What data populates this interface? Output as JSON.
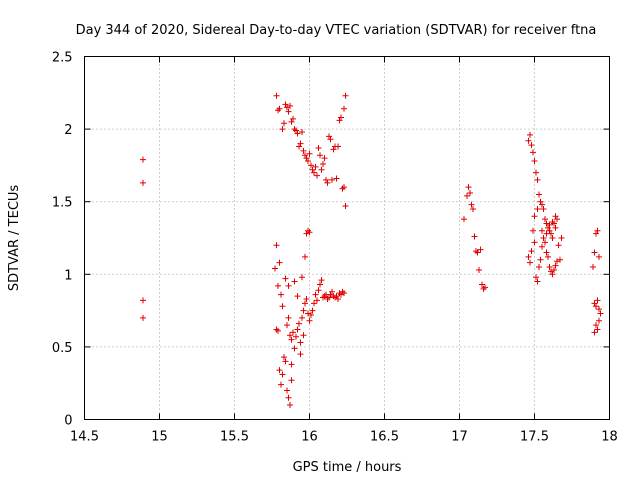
{
  "chart_data": {
    "type": "scatter",
    "title": "Day 344 of 2020, Sidereal Day-to-day VTEC variation (SDTVAR) for receiver ftna",
    "xlabel": "GPS time / hours",
    "ylabel": "SDTVAR / TECUs",
    "xlim": [
      14.5,
      18
    ],
    "ylim": [
      0,
      2.5
    ],
    "xticks": [
      14.5,
      15,
      15.5,
      16,
      16.5,
      17,
      17.5,
      18
    ],
    "yticks": [
      0,
      0.5,
      1,
      1.5,
      2,
      2.5
    ],
    "xtick_labels": [
      "14.5",
      "15",
      "15.5",
      "16",
      "16.5",
      "17",
      "17.5",
      "18"
    ],
    "ytick_labels": [
      "0",
      "0.5",
      "1",
      "1.5",
      "2",
      "2.5"
    ],
    "grid": true,
    "marker": "plus",
    "series": [
      {
        "name": "SDTVAR",
        "color": "#e00000",
        "points": [
          [
            14.89,
            1.79
          ],
          [
            14.89,
            1.63
          ],
          [
            14.89,
            0.82
          ],
          [
            14.89,
            0.7
          ],
          [
            15.78,
            2.23
          ],
          [
            15.79,
            2.13
          ],
          [
            15.8,
            2.14
          ],
          [
            15.82,
            2.0
          ],
          [
            15.83,
            2.04
          ],
          [
            15.84,
            2.17
          ],
          [
            15.85,
            2.15
          ],
          [
            15.86,
            2.12
          ],
          [
            15.87,
            2.16
          ],
          [
            15.88,
            2.05
          ],
          [
            15.89,
            2.07
          ],
          [
            15.9,
            2.0
          ],
          [
            15.91,
            1.99
          ],
          [
            15.92,
            1.97
          ],
          [
            15.93,
            1.88
          ],
          [
            15.94,
            1.9
          ],
          [
            15.95,
            1.98
          ],
          [
            15.96,
            1.85
          ],
          [
            15.97,
            1.82
          ],
          [
            15.98,
            1.8
          ],
          [
            15.99,
            1.78
          ],
          [
            16.0,
            1.83
          ],
          [
            16.01,
            1.75
          ],
          [
            16.02,
            1.72
          ],
          [
            16.03,
            1.7
          ],
          [
            16.04,
            1.74
          ],
          [
            16.05,
            1.68
          ],
          [
            16.06,
            1.87
          ],
          [
            16.07,
            1.82
          ],
          [
            16.08,
            1.72
          ],
          [
            16.09,
            1.76
          ],
          [
            16.1,
            1.8
          ],
          [
            16.11,
            1.65
          ],
          [
            16.12,
            1.63
          ],
          [
            16.13,
            1.95
          ],
          [
            16.14,
            1.93
          ],
          [
            16.15,
            1.65
          ],
          [
            16.16,
            1.86
          ],
          [
            16.17,
            1.88
          ],
          [
            16.18,
            1.66
          ],
          [
            16.19,
            1.88
          ],
          [
            16.2,
            2.06
          ],
          [
            16.21,
            2.08
          ],
          [
            16.22,
            1.59
          ],
          [
            16.23,
            2.14
          ],
          [
            16.24,
            2.23
          ],
          [
            16.23,
            1.6
          ],
          [
            16.24,
            1.47
          ],
          [
            15.77,
            1.04
          ],
          [
            15.78,
            1.2
          ],
          [
            15.79,
            0.92
          ],
          [
            15.8,
            1.08
          ],
          [
            15.78,
            0.62
          ],
          [
            15.79,
            0.61
          ],
          [
            15.81,
            0.86
          ],
          [
            15.82,
            0.78
          ],
          [
            15.8,
            0.34
          ],
          [
            15.81,
            0.24
          ],
          [
            15.82,
            0.31
          ],
          [
            15.83,
            0.43
          ],
          [
            15.84,
            0.4
          ],
          [
            15.85,
            0.2
          ],
          [
            15.86,
            0.15
          ],
          [
            15.87,
            0.1
          ],
          [
            15.85,
            0.65
          ],
          [
            15.86,
            0.7
          ],
          [
            15.87,
            0.58
          ],
          [
            15.88,
            0.55
          ],
          [
            15.89,
            0.6
          ],
          [
            15.9,
            0.49
          ],
          [
            15.91,
            0.57
          ],
          [
            15.92,
            0.62
          ],
          [
            15.93,
            0.66
          ],
          [
            15.94,
            0.53
          ],
          [
            15.95,
            0.7
          ],
          [
            15.96,
            0.75
          ],
          [
            15.97,
            0.8
          ],
          [
            15.98,
            0.83
          ],
          [
            15.99,
            0.73
          ],
          [
            16.0,
            0.68
          ],
          [
            16.01,
            0.72
          ],
          [
            16.02,
            0.75
          ],
          [
            16.03,
            0.8
          ],
          [
            16.04,
            0.86
          ],
          [
            16.05,
            0.82
          ],
          [
            16.06,
            0.89
          ],
          [
            16.07,
            0.93
          ],
          [
            16.08,
            0.96
          ],
          [
            16.09,
            0.84
          ],
          [
            16.1,
            0.85
          ],
          [
            16.11,
            0.86
          ],
          [
            16.12,
            0.83
          ],
          [
            16.13,
            0.84
          ],
          [
            16.14,
            0.86
          ],
          [
            16.15,
            0.88
          ],
          [
            16.16,
            0.85
          ],
          [
            16.17,
            0.84
          ],
          [
            16.18,
            0.85
          ],
          [
            16.19,
            0.83
          ],
          [
            16.2,
            0.87
          ],
          [
            16.21,
            0.86
          ],
          [
            16.22,
            0.88
          ],
          [
            16.23,
            0.87
          ],
          [
            15.88,
            0.38
          ],
          [
            15.9,
            0.95
          ],
          [
            15.92,
            0.85
          ],
          [
            15.95,
            0.98
          ],
          [
            15.97,
            1.12
          ],
          [
            15.98,
            1.28
          ],
          [
            15.99,
            1.3
          ],
          [
            16.0,
            1.29
          ],
          [
            15.96,
            0.58
          ],
          [
            15.94,
            0.45
          ],
          [
            15.84,
            0.97
          ],
          [
            15.86,
            0.92
          ],
          [
            15.88,
            0.27
          ],
          [
            17.03,
            1.38
          ],
          [
            17.05,
            1.54
          ],
          [
            17.06,
            1.6
          ],
          [
            17.07,
            1.56
          ],
          [
            17.08,
            1.48
          ],
          [
            17.09,
            1.45
          ],
          [
            17.1,
            1.26
          ],
          [
            17.11,
            1.16
          ],
          [
            17.12,
            1.15
          ],
          [
            17.13,
            1.03
          ],
          [
            17.14,
            1.17
          ],
          [
            17.15,
            0.93
          ],
          [
            17.16,
            0.9
          ],
          [
            17.17,
            0.91
          ],
          [
            17.46,
            1.92
          ],
          [
            17.47,
            1.96
          ],
          [
            17.48,
            1.89
          ],
          [
            17.49,
            1.84
          ],
          [
            17.5,
            1.78
          ],
          [
            17.51,
            1.7
          ],
          [
            17.52,
            1.65
          ],
          [
            17.53,
            1.55
          ],
          [
            17.54,
            1.5
          ],
          [
            17.55,
            1.48
          ],
          [
            17.56,
            1.45
          ],
          [
            17.57,
            1.38
          ],
          [
            17.58,
            1.35
          ],
          [
            17.59,
            1.32
          ],
          [
            17.6,
            1.3
          ],
          [
            17.61,
            1.28
          ],
          [
            17.62,
            1.25
          ],
          [
            17.63,
            1.35
          ],
          [
            17.64,
            1.4
          ],
          [
            17.65,
            1.38
          ],
          [
            17.66,
            1.2
          ],
          [
            17.67,
            1.1
          ],
          [
            17.68,
            1.25
          ],
          [
            17.46,
            1.12
          ],
          [
            17.47,
            1.08
          ],
          [
            17.48,
            1.16
          ],
          [
            17.49,
            1.3
          ],
          [
            17.5,
            1.22
          ],
          [
            17.51,
            0.98
          ],
          [
            17.52,
            0.95
          ],
          [
            17.53,
            1.05
          ],
          [
            17.54,
            1.1
          ],
          [
            17.55,
            1.19
          ],
          [
            17.56,
            1.25
          ],
          [
            17.57,
            1.22
          ],
          [
            17.58,
            1.15
          ],
          [
            17.59,
            1.12
          ],
          [
            17.6,
            1.05
          ],
          [
            17.61,
            1.02
          ],
          [
            17.62,
            1.0
          ],
          [
            17.63,
            1.03
          ],
          [
            17.64,
            1.06
          ],
          [
            17.65,
            1.09
          ],
          [
            17.5,
            1.4
          ],
          [
            17.52,
            1.45
          ],
          [
            17.55,
            1.3
          ],
          [
            17.58,
            1.28
          ],
          [
            17.6,
            1.34
          ],
          [
            17.62,
            1.36
          ],
          [
            17.64,
            1.32
          ],
          [
            17.89,
            1.05
          ],
          [
            17.9,
            1.15
          ],
          [
            17.91,
            1.28
          ],
          [
            17.92,
            1.3
          ],
          [
            17.93,
            1.12
          ],
          [
            17.9,
            0.8
          ],
          [
            17.91,
            0.78
          ],
          [
            17.92,
            0.82
          ],
          [
            17.93,
            0.76
          ],
          [
            17.94,
            0.73
          ],
          [
            17.91,
            0.65
          ],
          [
            17.92,
            0.62
          ],
          [
            17.93,
            0.68
          ],
          [
            17.9,
            0.6
          ]
        ]
      }
    ]
  }
}
